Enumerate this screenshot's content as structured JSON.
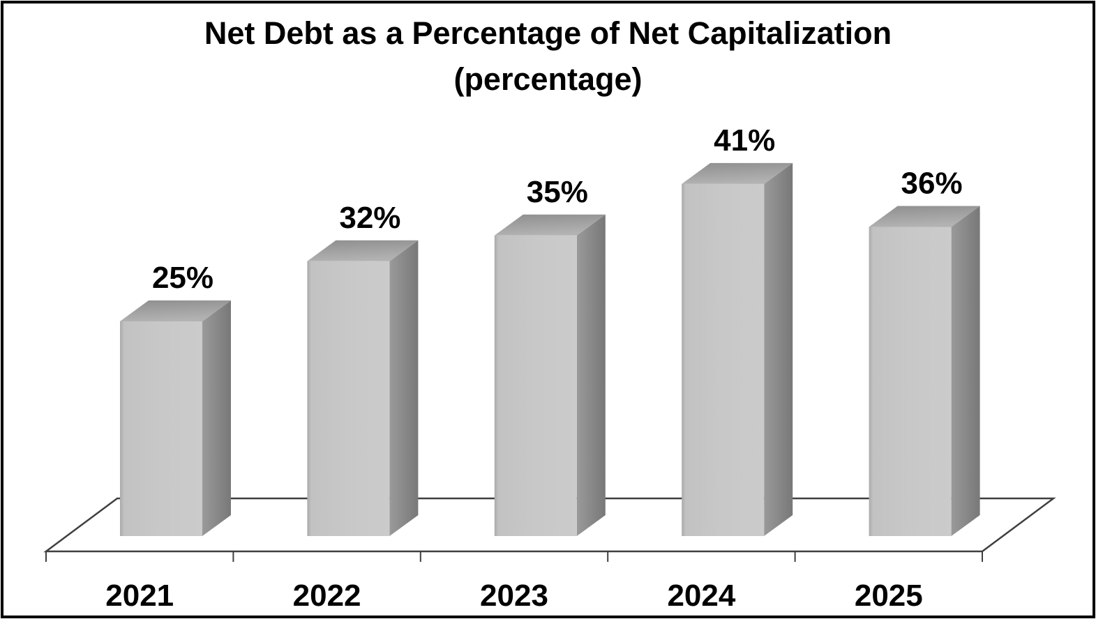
{
  "chart_data": {
    "type": "bar",
    "style": "3d-column",
    "title": "Net Debt as a Percentage of Net Capitalization",
    "subtitle": "(percentage)",
    "categories": [
      "2021",
      "2022",
      "2023",
      "2024",
      "2025"
    ],
    "values": [
      25,
      32,
      35,
      41,
      36
    ],
    "value_labels": [
      "25%",
      "32%",
      "35%",
      "41%",
      "36%"
    ],
    "series": [
      {
        "name": "Net Debt as a Percentage of Net Capitalization",
        "values": [
          25,
          32,
          35,
          41,
          36
        ]
      }
    ],
    "xlabel": "",
    "ylabel": "",
    "ylim": [
      0,
      45
    ],
    "grid": false,
    "legend": false,
    "colors": {
      "bar_front": "#c7c7c7",
      "bar_top": "#9d9d9d",
      "bar_side": "#848484",
      "axis_line": "#3f3f3f",
      "text": "#000000",
      "background": "#ffffff",
      "border": "#000000"
    }
  }
}
